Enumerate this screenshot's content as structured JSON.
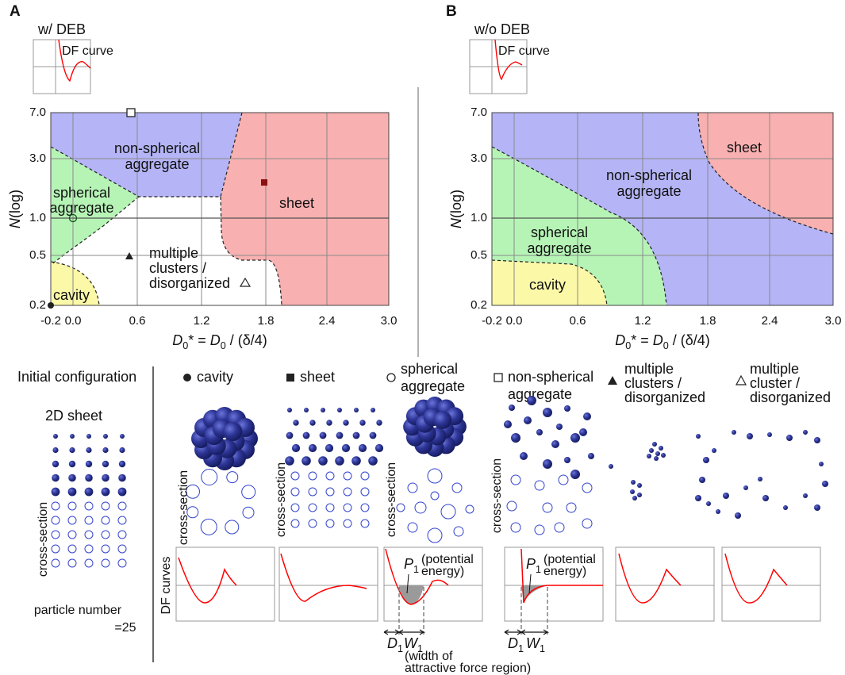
{
  "panel_a": {
    "label": "A",
    "inset_title": "w/ DEB",
    "inset_label": "DF curve",
    "y_ticks": [
      "7.0",
      "3.0",
      "1.0",
      "0.5",
      "0.2"
    ],
    "x_ticks": [
      "-0.2",
      "0.0",
      "0.6",
      "1.2",
      "1.8",
      "2.4",
      "3.0"
    ],
    "regions": {
      "non_spherical": [
        "non-spherical",
        "aggregate"
      ],
      "spherical": [
        "spherical",
        "aggregate"
      ],
      "sheet": [
        "sheet"
      ],
      "multiple": [
        "multiple",
        "clusters /",
        "disorganized"
      ],
      "cavity": [
        "cavity"
      ]
    }
  },
  "panel_b": {
    "label": "B",
    "inset_title": "w/o DEB",
    "inset_label": "DF curve",
    "y_ticks": [
      "7.0",
      "3.0",
      "1.0",
      "0.5",
      "0.2"
    ],
    "x_ticks": [
      "-0.2",
      "0.0",
      "0.6",
      "1.2",
      "1.8",
      "2.4",
      "3.0"
    ],
    "regions": {
      "non_spherical": [
        "non-spherical",
        "aggregate"
      ],
      "spherical": [
        "spherical",
        "aggregate"
      ],
      "sheet": [
        "sheet"
      ],
      "cavity": [
        "cavity"
      ]
    }
  },
  "axis": {
    "y_label": [
      "N",
      "(log)"
    ],
    "x_label": [
      "D",
      "0",
      "* = ",
      "D",
      "0",
      " / (δ/4)"
    ]
  },
  "bottom": {
    "title": "Initial configuration",
    "sheet_label": "2D sheet",
    "cross_section": "cross-section",
    "particle_number": [
      "particle number",
      "=25"
    ],
    "df_label": "DF curves",
    "columns": [
      [
        "cavity"
      ],
      [
        "sheet"
      ],
      [
        "spherical",
        "aggregate"
      ],
      [
        "non-spherical",
        "aggregate"
      ],
      [
        "multiple",
        "clusters /",
        "disorganized"
      ],
      [
        "multiple",
        "cluster /",
        "disorganized"
      ]
    ],
    "annotations": {
      "p1": [
        "P",
        "1"
      ],
      "potential": [
        "(potential",
        "energy)"
      ],
      "d1": [
        "D",
        "1"
      ],
      "w1": [
        "W",
        "1"
      ],
      "width": [
        "(width of",
        "attractive force region)"
      ]
    }
  }
}
